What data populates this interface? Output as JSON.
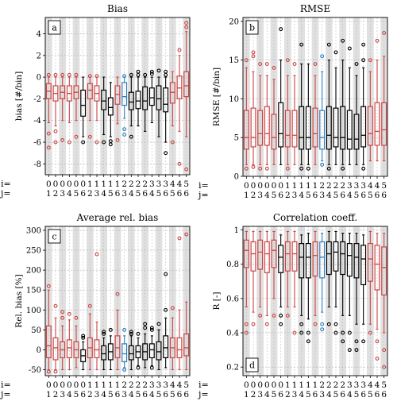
{
  "figure": {
    "i_row_label": "i=",
    "j_row_label": "j=",
    "i_values": [
      "0",
      "0",
      "0",
      "0",
      "0",
      "0",
      "1",
      "1",
      "1",
      "1",
      "1",
      "2",
      "2",
      "2",
      "2",
      "3",
      "3",
      "3",
      "4",
      "4",
      "5"
    ],
    "j_values": [
      "1",
      "2",
      "3",
      "4",
      "5",
      "6",
      "2",
      "3",
      "4",
      "5",
      "6",
      "3",
      "4",
      "5",
      "6",
      "4",
      "5",
      "6",
      "5",
      "6",
      "6"
    ],
    "colors": {
      "outer": "#cc4444",
      "inner": "#000000",
      "highlight": "#2a7fc0",
      "band": "#e0e0e0",
      "grid": "#b4b4b4"
    },
    "box_colors": [
      "outer",
      "outer",
      "outer",
      "outer",
      "outer",
      "inner",
      "outer",
      "outer",
      "inner",
      "inner",
      "outer",
      "highlight",
      "inner",
      "inner",
      "inner",
      "inner",
      "inner",
      "inner",
      "outer",
      "outer",
      "outer"
    ]
  },
  "chart_data": [
    {
      "type": "boxplot",
      "panel_letter": "a",
      "title": "Bias",
      "ylabel": "bias [#/bin]",
      "ylim": [
        -9,
        5.5
      ],
      "yticks": [
        -8,
        -6,
        -4,
        -2,
        0,
        2,
        4
      ],
      "grid": true,
      "boxes": [
        {
          "q1": -2.0,
          "med": -1.3,
          "q3": -0.6,
          "wlo": -4.2,
          "whi": 0.0,
          "outliers": [
            -6.5,
            -5.2,
            0.2
          ]
        },
        {
          "q1": -2.2,
          "med": -1.5,
          "q3": -0.8,
          "wlo": -4.5,
          "whi": 0.0,
          "outliers": [
            -6.0,
            -5.0,
            0.2
          ]
        },
        {
          "q1": -2.0,
          "med": -1.4,
          "q3": -0.8,
          "wlo": -4.0,
          "whi": 0.0,
          "outliers": [
            -5.8,
            0.2
          ]
        },
        {
          "q1": -2.2,
          "med": -1.5,
          "q3": -0.8,
          "wlo": -4.2,
          "whi": 0.0,
          "outliers": [
            -6.0,
            0.2
          ]
        },
        {
          "q1": -2.0,
          "med": -1.4,
          "q3": -0.8,
          "wlo": -4.0,
          "whi": 0.0,
          "outliers": [
            -5.5,
            0.2
          ]
        },
        {
          "q1": -3.6,
          "med": -2.6,
          "q3": -1.2,
          "wlo": -5.5,
          "whi": 0.0,
          "outliers": [
            -6.0
          ]
        },
        {
          "q1": -2.0,
          "med": -1.2,
          "q3": -0.6,
          "wlo": -4.0,
          "whi": 0.0,
          "outliers": [
            -5.5,
            0.1
          ]
        },
        {
          "q1": -2.2,
          "med": -1.5,
          "q3": -0.8,
          "wlo": -4.0,
          "whi": 0.0,
          "outliers": [
            -6.0,
            0.1
          ]
        },
        {
          "q1": -3.0,
          "med": -2.2,
          "q3": -1.2,
          "wlo": -5.3,
          "whi": 0.0,
          "outliers": [
            -6.0
          ]
        },
        {
          "q1": -3.5,
          "med": -2.8,
          "q3": -1.9,
          "wlo": -5.5,
          "whi": -0.5,
          "outliers": [
            -6.2,
            -5.9
          ]
        },
        {
          "q1": -2.5,
          "med": -1.6,
          "q3": -0.8,
          "wlo": -4.3,
          "whi": 0.0,
          "outliers": [
            -5.8
          ]
        },
        {
          "q1": -2.6,
          "med": -1.8,
          "q3": -0.5,
          "wlo": -3.8,
          "whi": 0.0,
          "outliers": [
            -4.8,
            -5.3,
            0.1
          ]
        },
        {
          "q1": -3.0,
          "med": -2.3,
          "q3": -1.4,
          "wlo": -4.5,
          "whi": 0.0,
          "outliers": [
            -5.5,
            0.2
          ]
        },
        {
          "q1": -2.9,
          "med": -2.2,
          "q3": -1.3,
          "wlo": -4.5,
          "whi": 0.0,
          "outliers": [
            0.2,
            0.5
          ]
        },
        {
          "q1": -3.0,
          "med": -2.2,
          "q3": -0.9,
          "wlo": -5.0,
          "whi": 0.0,
          "outliers": [
            0.2
          ]
        },
        {
          "q1": -2.6,
          "med": -1.9,
          "q3": -1.0,
          "wlo": -4.2,
          "whi": 0.0,
          "outliers": [
            0.3,
            0.5
          ]
        },
        {
          "q1": -3.0,
          "med": -2.0,
          "q3": -0.8,
          "wlo": -5.5,
          "whi": 0.0,
          "outliers": [
            0.6
          ]
        },
        {
          "q1": -3.2,
          "med": -2.5,
          "q3": -1.0,
          "wlo": -6.0,
          "whi": 0.0,
          "outliers": [
            -7.0,
            0.2,
            0.5
          ]
        },
        {
          "q1": -2.4,
          "med": -1.4,
          "q3": -0.5,
          "wlo": -4.5,
          "whi": 0.5,
          "outliers": [
            -6.0
          ]
        },
        {
          "q1": -2.0,
          "med": -1.0,
          "q3": 0.1,
          "wlo": -5.0,
          "whi": 2.0,
          "outliers": [
            -8.0,
            2.5
          ]
        },
        {
          "q1": -1.8,
          "med": -0.8,
          "q3": 0.5,
          "wlo": -5.5,
          "whi": 4.2,
          "outliers": [
            -8.5,
            4.6,
            5.0
          ]
        }
      ]
    },
    {
      "type": "boxplot",
      "panel_letter": "b",
      "title": "RMSE",
      "ylabel": "RMSE [#/bin]",
      "ylim": [
        0,
        20.5
      ],
      "yticks": [
        0,
        5,
        10,
        15,
        20
      ],
      "grid": true,
      "boxes": [
        {
          "q1": 3.5,
          "med": 5.0,
          "q3": 8.5,
          "wlo": 1.5,
          "whi": 14.0,
          "outliers": [
            15.0,
            1.0
          ]
        },
        {
          "q1": 3.8,
          "med": 5.0,
          "q3": 8.8,
          "wlo": 1.5,
          "whi": 13.5,
          "outliers": [
            15.5,
            16.0,
            1.2
          ]
        },
        {
          "q1": 4.0,
          "med": 5.5,
          "q3": 8.5,
          "wlo": 1.5,
          "whi": 13.0,
          "outliers": [
            14.5,
            1.0
          ]
        },
        {
          "q1": 4.0,
          "med": 5.5,
          "q3": 9.0,
          "wlo": 1.5,
          "whi": 13.0,
          "outliers": [
            14.5,
            1.0
          ]
        },
        {
          "q1": 3.5,
          "med": 5.0,
          "q3": 8.0,
          "wlo": 1.5,
          "whi": 12.5,
          "outliers": [
            14.0
          ]
        },
        {
          "q1": 3.8,
          "med": 5.5,
          "q3": 9.5,
          "wlo": 1.5,
          "whi": 15.0,
          "outliers": [
            19.0
          ]
        },
        {
          "q1": 3.8,
          "med": 5.3,
          "q3": 8.5,
          "wlo": 1.5,
          "whi": 13.0,
          "outliers": [
            15.0,
            1.0
          ]
        },
        {
          "q1": 3.8,
          "med": 5.3,
          "q3": 8.5,
          "wlo": 1.5,
          "whi": 13.0,
          "outliers": [
            14.5
          ]
        },
        {
          "q1": 3.5,
          "med": 5.0,
          "q3": 9.0,
          "wlo": 1.5,
          "whi": 14.5,
          "outliers": [
            17.0,
            1.0
          ]
        },
        {
          "q1": 3.5,
          "med": 5.0,
          "q3": 9.0,
          "wlo": 1.5,
          "whi": 14.5,
          "outliers": [
            1.0
          ]
        },
        {
          "q1": 3.8,
          "med": 5.5,
          "q3": 8.8,
          "wlo": 1.5,
          "whi": 13.0,
          "outliers": [
            14.5
          ]
        },
        {
          "q1": 3.5,
          "med": 5.0,
          "q3": 8.5,
          "wlo": 2.0,
          "whi": 13.5,
          "outliers": [
            15.5,
            1.5
          ]
        },
        {
          "q1": 3.5,
          "med": 5.3,
          "q3": 9.0,
          "wlo": 1.5,
          "whi": 15.0,
          "outliers": [
            17.0,
            1.0
          ]
        },
        {
          "q1": 3.8,
          "med": 5.0,
          "q3": 8.8,
          "wlo": 1.5,
          "whi": 14.0,
          "outliers": [
            16.0
          ]
        },
        {
          "q1": 3.5,
          "med": 5.0,
          "q3": 9.0,
          "wlo": 1.5,
          "whi": 15.0,
          "outliers": [
            17.5,
            1.0
          ]
        },
        {
          "q1": 3.5,
          "med": 4.8,
          "q3": 8.5,
          "wlo": 1.5,
          "whi": 14.0,
          "outliers": [
            16.5
          ]
        },
        {
          "q1": 3.5,
          "med": 4.8,
          "q3": 8.0,
          "wlo": 1.5,
          "whi": 13.0,
          "outliers": [
            14.5
          ]
        },
        {
          "q1": 3.8,
          "med": 5.3,
          "q3": 9.0,
          "wlo": 1.5,
          "whi": 14.0,
          "outliers": [
            15.0,
            17.0,
            1.0
          ]
        },
        {
          "q1": 4.0,
          "med": 5.5,
          "q3": 9.0,
          "wlo": 2.0,
          "whi": 13.5,
          "outliers": [
            15.0
          ]
        },
        {
          "q1": 4.0,
          "med": 5.8,
          "q3": 9.5,
          "wlo": 2.0,
          "whi": 15.0,
          "outliers": [
            17.5
          ]
        },
        {
          "q1": 4.0,
          "med": 6.0,
          "q3": 9.5,
          "wlo": 2.0,
          "whi": 15.5,
          "outliers": [
            18.5
          ]
        }
      ]
    },
    {
      "type": "boxplot",
      "panel_letter": "c",
      "title": "Average rel. bias",
      "ylabel": "Rel. bias [%]",
      "ylim": [
        -65,
        310
      ],
      "yticks": [
        -50,
        0,
        50,
        100,
        150,
        200,
        250,
        300
      ],
      "grid": true,
      "boxes": [
        {
          "q1": -20,
          "med": 10,
          "q3": 60,
          "wlo": -50,
          "whi": 150,
          "outliers": [
            160,
            -55
          ]
        },
        {
          "q1": -25,
          "med": 5,
          "q3": 30,
          "wlo": -50,
          "whi": 80,
          "outliers": [
            110,
            -55
          ]
        },
        {
          "q1": -20,
          "med": 0,
          "q3": 20,
          "wlo": -50,
          "whi": 60,
          "outliers": [
            80,
            95
          ]
        },
        {
          "q1": -20,
          "med": 5,
          "q3": 25,
          "wlo": -50,
          "whi": 75,
          "outliers": [
            90
          ]
        },
        {
          "q1": -20,
          "med": 0,
          "q3": 20,
          "wlo": -45,
          "whi": 60,
          "outliers": [
            80
          ]
        },
        {
          "q1": -30,
          "med": -15,
          "q3": 0,
          "wlo": -50,
          "whi": 20,
          "outliers": [
            30,
            35
          ]
        },
        {
          "q1": -20,
          "med": 5,
          "q3": 30,
          "wlo": -50,
          "whi": 90,
          "outliers": [
            110
          ]
        },
        {
          "q1": -20,
          "med": 0,
          "q3": 25,
          "wlo": -50,
          "whi": 70,
          "outliers": [
            240
          ]
        },
        {
          "q1": -25,
          "med": -10,
          "q3": 10,
          "wlo": -50,
          "whi": 30,
          "outliers": [
            40,
            45
          ]
        },
        {
          "q1": -25,
          "med": -5,
          "q3": 15,
          "wlo": -50,
          "whi": 35,
          "outliers": [
            50
          ]
        },
        {
          "q1": -20,
          "med": 5,
          "q3": 35,
          "wlo": -50,
          "whi": 100,
          "outliers": [
            140
          ]
        },
        {
          "q1": -30,
          "med": -10,
          "q3": 15,
          "wlo": -45,
          "whi": 35,
          "outliers": [
            50,
            -50
          ]
        },
        {
          "q1": -25,
          "med": -10,
          "q3": 10,
          "wlo": -50,
          "whi": 35,
          "outliers": [
            40,
            45
          ]
        },
        {
          "q1": -20,
          "med": -5,
          "q3": 10,
          "wlo": -40,
          "whi": 30,
          "outliers": [
            40,
            -45
          ]
        },
        {
          "q1": -25,
          "med": -5,
          "q3": 15,
          "wlo": -45,
          "whi": 40,
          "outliers": [
            55,
            65
          ]
        },
        {
          "q1": -20,
          "med": 0,
          "q3": 15,
          "wlo": -40,
          "whi": 35,
          "outliers": [
            50,
            55,
            -45
          ]
        },
        {
          "q1": -25,
          "med": -5,
          "q3": 20,
          "wlo": -50,
          "whi": 50,
          "outliers": [
            65
          ]
        },
        {
          "q1": -20,
          "med": 5,
          "q3": 35,
          "wlo": -45,
          "whi": 80,
          "outliers": [
            190,
            100
          ]
        },
        {
          "q1": -20,
          "med": 5,
          "q3": 30,
          "wlo": -50,
          "whi": 80,
          "outliers": [
            105
          ]
        },
        {
          "q1": -20,
          "med": 0,
          "q3": 30,
          "wlo": -50,
          "whi": 100,
          "outliers": [
            280
          ]
        },
        {
          "q1": -15,
          "med": 5,
          "q3": 40,
          "wlo": -50,
          "whi": 120,
          "outliers": [
            290
          ]
        }
      ]
    },
    {
      "type": "boxplot",
      "panel_letter": "d",
      "title": "Correlation coeff.",
      "ylabel": "R [-]",
      "ylim": [
        0.15,
        1.02
      ],
      "yticks": [
        0.2,
        0.4,
        0.6,
        0.8,
        1.0
      ],
      "grid": true,
      "boxes": [
        {
          "q1": 0.78,
          "med": 0.88,
          "q3": 0.94,
          "wlo": 0.55,
          "whi": 0.99,
          "outliers": [
            0.45,
            0.4
          ]
        },
        {
          "q1": 0.76,
          "med": 0.86,
          "q3": 0.93,
          "wlo": 0.52,
          "whi": 0.99,
          "outliers": [
            0.45
          ]
        },
        {
          "q1": 0.77,
          "med": 0.87,
          "q3": 0.94,
          "wlo": 0.55,
          "whi": 0.99,
          "outliers": [
            0.5
          ]
        },
        {
          "q1": 0.75,
          "med": 0.86,
          "q3": 0.93,
          "wlo": 0.5,
          "whi": 0.99,
          "outliers": [
            0.45
          ]
        },
        {
          "q1": 0.78,
          "med": 0.88,
          "q3": 0.94,
          "wlo": 0.6,
          "whi": 0.99,
          "outliers": [
            0.5
          ]
        },
        {
          "q1": 0.75,
          "med": 0.84,
          "q3": 0.91,
          "wlo": 0.55,
          "whi": 0.97,
          "outliers": [
            0.5,
            0.45
          ]
        },
        {
          "q1": 0.76,
          "med": 0.86,
          "q3": 0.93,
          "wlo": 0.55,
          "whi": 0.99,
          "outliers": [
            0.5
          ]
        },
        {
          "q1": 0.76,
          "med": 0.86,
          "q3": 0.93,
          "wlo": 0.55,
          "whi": 0.99,
          "outliers": [
            0.4
          ]
        },
        {
          "q1": 0.72,
          "med": 0.84,
          "q3": 0.92,
          "wlo": 0.5,
          "whi": 0.97,
          "outliers": [
            0.45,
            0.4
          ]
        },
        {
          "q1": 0.72,
          "med": 0.84,
          "q3": 0.92,
          "wlo": 0.48,
          "whi": 0.98,
          "outliers": [
            0.4,
            0.35
          ]
        },
        {
          "q1": 0.73,
          "med": 0.85,
          "q3": 0.93,
          "wlo": 0.5,
          "whi": 0.99,
          "outliers": [
            0.45
          ]
        },
        {
          "q1": 0.72,
          "med": 0.84,
          "q3": 0.93,
          "wlo": 0.52,
          "whi": 0.98,
          "outliers": [
            0.45,
            0.42
          ]
        },
        {
          "q1": 0.74,
          "med": 0.86,
          "q3": 0.93,
          "wlo": 0.55,
          "whi": 0.99,
          "outliers": [
            0.45
          ]
        },
        {
          "q1": 0.76,
          "med": 0.87,
          "q3": 0.93,
          "wlo": 0.55,
          "whi": 0.99,
          "outliers": [
            0.45,
            0.4
          ]
        },
        {
          "q1": 0.74,
          "med": 0.86,
          "q3": 0.93,
          "wlo": 0.5,
          "whi": 0.98,
          "outliers": [
            0.4,
            0.35
          ]
        },
        {
          "q1": 0.73,
          "med": 0.85,
          "q3": 0.92,
          "wlo": 0.5,
          "whi": 0.98,
          "outliers": [
            0.4,
            0.3
          ]
        },
        {
          "q1": 0.72,
          "med": 0.84,
          "q3": 0.92,
          "wlo": 0.45,
          "whi": 0.98,
          "outliers": [
            0.35,
            0.3
          ]
        },
        {
          "q1": 0.68,
          "med": 0.83,
          "q3": 0.91,
          "wlo": 0.45,
          "whi": 0.97,
          "outliers": [
            0.35
          ]
        },
        {
          "q1": 0.7,
          "med": 0.83,
          "q3": 0.92,
          "wlo": 0.45,
          "whi": 0.99,
          "outliers": [
            0.4
          ]
        },
        {
          "q1": 0.65,
          "med": 0.8,
          "q3": 0.91,
          "wlo": 0.42,
          "whi": 0.98,
          "outliers": [
            0.35,
            0.25
          ]
        },
        {
          "q1": 0.62,
          "med": 0.78,
          "q3": 0.9,
          "wlo": 0.4,
          "whi": 0.98,
          "outliers": [
            0.3,
            0.2
          ]
        }
      ]
    }
  ]
}
